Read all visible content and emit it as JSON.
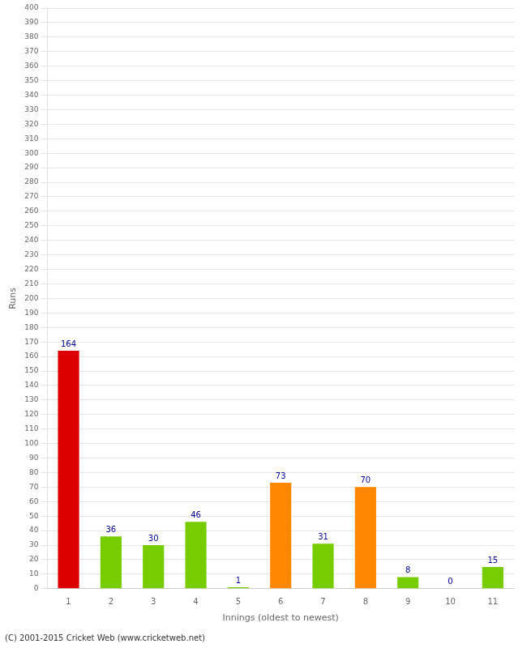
{
  "chart_data": {
    "type": "bar",
    "categories": [
      1,
      2,
      3,
      4,
      5,
      6,
      7,
      8,
      9,
      10,
      11
    ],
    "values": [
      164,
      36,
      30,
      46,
      1,
      73,
      31,
      70,
      8,
      0,
      15
    ],
    "colors": [
      "#dd0000",
      "#77cc00",
      "#77cc00",
      "#77cc00",
      "#77cc00",
      "#ff8800",
      "#77cc00",
      "#ff8800",
      "#77cc00",
      "#77cc00",
      "#77cc00"
    ],
    "xlabel": "Innings (oldest to newest)",
    "ylabel": "Runs",
    "ylim": [
      0,
      400
    ],
    "yticks": [
      0,
      10,
      20,
      30,
      40,
      50,
      60,
      70,
      80,
      90,
      100,
      110,
      120,
      130,
      140,
      150,
      160,
      170,
      180,
      190,
      200,
      210,
      220,
      230,
      240,
      250,
      260,
      270,
      280,
      290,
      300,
      310,
      320,
      330,
      340,
      350,
      360,
      370,
      380,
      390,
      400
    ],
    "grid": true,
    "data_labels": true,
    "annotations": [
      "(C) 2001-2015 Cricket Web (www.cricketweb.net)"
    ]
  }
}
